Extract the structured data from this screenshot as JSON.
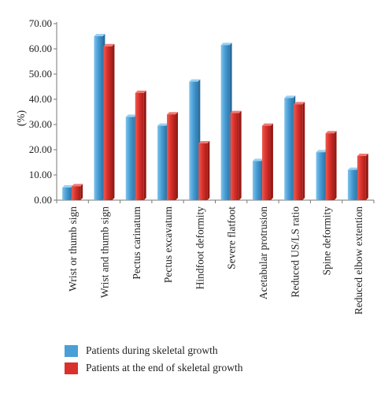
{
  "chart_data": {
    "type": "bar",
    "ylabel": "(%)",
    "ylim": [
      0,
      70
    ],
    "yticks": [
      "0.00",
      "10.00",
      "20.00",
      "30.00",
      "40.00",
      "50.00",
      "60.00",
      "70.00"
    ],
    "categories": [
      "Wrist or thumb sign",
      "Wrist and thumb sign",
      "Pectus carinatum",
      "Pectus excavatum",
      "Hindfoot deformity",
      "Severe flatfoot",
      "Acetabular protrusion",
      "Reduced US/LS ratio",
      "Spine deformity",
      "Reduced elbow extention"
    ],
    "series": [
      {
        "name": "Patients during skeletal growth",
        "color": "#4a9fd6",
        "values": [
          5.0,
          65.0,
          33.0,
          29.5,
          47.0,
          61.5,
          15.5,
          40.5,
          19.0,
          12.0
        ]
      },
      {
        "name": "Patients at the end of skeletal growth",
        "color": "#d9312b",
        "values": [
          5.5,
          61.0,
          42.5,
          34.0,
          22.5,
          34.5,
          29.5,
          38.0,
          26.5,
          17.5
        ]
      }
    ],
    "grid": false,
    "legend_position": "bottom"
  }
}
